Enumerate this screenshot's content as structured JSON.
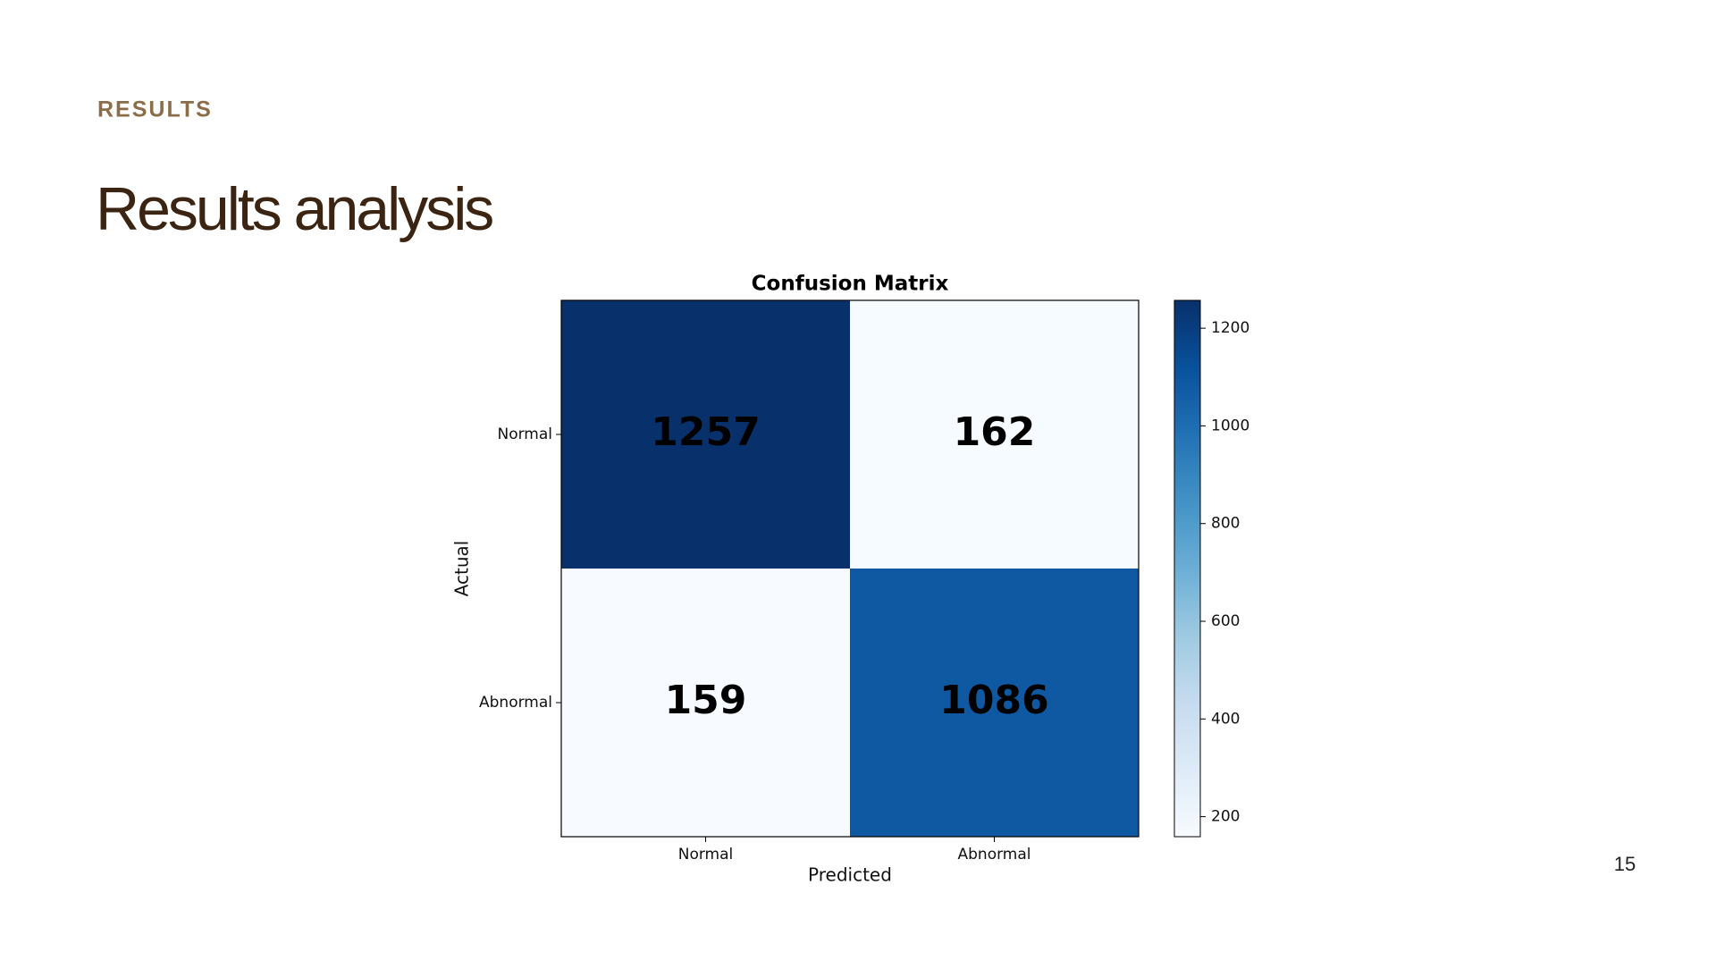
{
  "header": {
    "kicker": "RESULTS",
    "title": "Results analysis"
  },
  "page_number": "15",
  "chart_data": {
    "type": "heatmap",
    "title": "Confusion Matrix",
    "x_label": "Predicted",
    "y_label": "Actual",
    "x_categories": [
      "Normal",
      "Abnormal"
    ],
    "y_categories": [
      "Normal",
      "Abnormal"
    ],
    "values": [
      [
        1257,
        162
      ],
      [
        159,
        1086
      ]
    ],
    "colormap": [
      "#f7fbff",
      "#deebf7",
      "#c6dbef",
      "#9ecae1",
      "#6baed6",
      "#4292c6",
      "#2171b5",
      "#08519c",
      "#08306b"
    ],
    "colorbar_lim": [
      159,
      1257
    ],
    "colorbar_ticks": [
      200,
      400,
      600,
      800,
      1000,
      1200
    ]
  }
}
